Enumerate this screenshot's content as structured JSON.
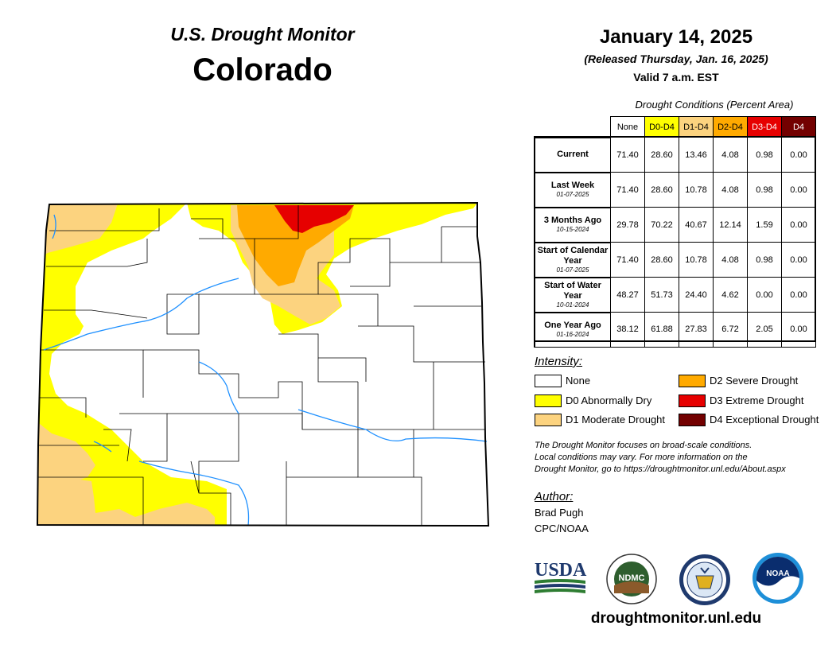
{
  "header": {
    "product": "U.S. Drought Monitor",
    "state": "Colorado",
    "date": "January 14, 2025",
    "released": "(Released Thursday, Jan. 16, 2025)",
    "valid": "Valid 7 a.m. EST"
  },
  "table": {
    "caption": "Drought Conditions (Percent Area)",
    "columns": [
      {
        "label": "None",
        "bg": "#ffffff",
        "fg": "#000000"
      },
      {
        "label": "D0-D4",
        "bg": "#ffff00",
        "fg": "#000000"
      },
      {
        "label": "D1-D4",
        "bg": "#fcd37f",
        "fg": "#000000"
      },
      {
        "label": "D2-D4",
        "bg": "#ffaa00",
        "fg": "#000000"
      },
      {
        "label": "D3-D4",
        "bg": "#e60000",
        "fg": "#ffffff"
      },
      {
        "label": "D4",
        "bg": "#730000",
        "fg": "#ffffff"
      }
    ],
    "rows": [
      {
        "label": "Current",
        "date": "",
        "values": [
          "71.40",
          "28.60",
          "13.46",
          "4.08",
          "0.98",
          "0.00"
        ]
      },
      {
        "label": "Last Week",
        "date": "01-07-2025",
        "values": [
          "71.40",
          "28.60",
          "10.78",
          "4.08",
          "0.98",
          "0.00"
        ]
      },
      {
        "label": "3 Months Ago",
        "date": "10-15-2024",
        "values": [
          "29.78",
          "70.22",
          "40.67",
          "12.14",
          "1.59",
          "0.00"
        ]
      },
      {
        "label": "Start of Calendar Year",
        "date": "01-07-2025",
        "values": [
          "71.40",
          "28.60",
          "10.78",
          "4.08",
          "0.98",
          "0.00"
        ]
      },
      {
        "label": "Start of Water Year",
        "date": "10-01-2024",
        "values": [
          "48.27",
          "51.73",
          "24.40",
          "4.62",
          "0.00",
          "0.00"
        ]
      },
      {
        "label": "One Year Ago",
        "date": "01-16-2024",
        "values": [
          "38.12",
          "61.88",
          "27.83",
          "6.72",
          "2.05",
          "0.00"
        ]
      }
    ]
  },
  "legend": {
    "title": "Intensity:",
    "items": [
      {
        "label": "None",
        "color": "#ffffff"
      },
      {
        "label": "D0 Abnormally Dry",
        "color": "#ffff00"
      },
      {
        "label": "D1 Moderate Drought",
        "color": "#fcd37f"
      },
      {
        "label": "D2 Severe Drought",
        "color": "#ffaa00"
      },
      {
        "label": "D3 Extreme Drought",
        "color": "#e60000"
      },
      {
        "label": "D4 Exceptional Drought",
        "color": "#730000"
      }
    ]
  },
  "note": {
    "line1": "The Drought Monitor focuses on broad-scale conditions.",
    "line2": "Local conditions may vary. For more information on the",
    "line3": "Drought Monitor, go to https://droughtmonitor.unl.edu/About.aspx"
  },
  "author": {
    "title": "Author:",
    "name": "Brad Pugh",
    "org": "CPC/NOAA"
  },
  "logos": {
    "usda": "USDA",
    "ndmc": "NDMC",
    "noaa": "NOAA"
  },
  "site": "droughtmonitor.unl.edu"
}
